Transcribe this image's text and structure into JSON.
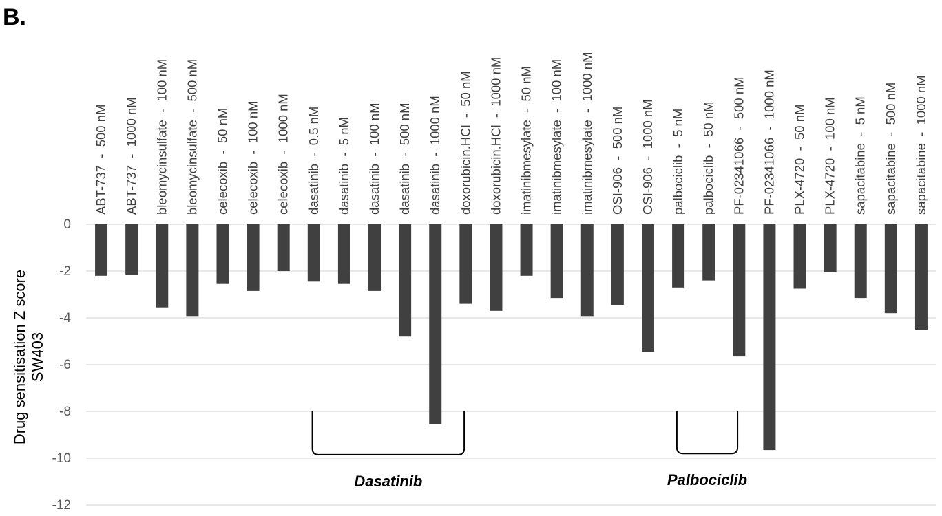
{
  "panel_label": "B.",
  "chart_data": {
    "type": "bar",
    "categories": [
      "ABT-737  -  500 nM",
      "ABT-737  -  1000 nM",
      "bleomycinsulfate  -  100 nM",
      "bleomycinsulfate  -  500 nM",
      "celecoxib  -  50 nM",
      "celecoxib  -  100 nM",
      "celecoxib  -  1000 nM",
      "dasatinib  -  0.5 nM",
      "dasatinib  -  5 nM",
      "dasatinib  -  100 nM",
      "dasatinib  -  500 nM",
      "dasatinib  -  1000 nM",
      "doxorubicin.HCl  -  50 nM",
      "doxorubicin.HCl  -  1000 nM",
      "imatinibmesylate  -  50 nM",
      "imatinibmesylate  -  100 nM",
      "imatinibmesylate  -  1000 nM",
      "OSI-906  -  500 nM",
      "OSI-906  -  1000 nM",
      "palbociclib  -  5 nM",
      "palbociclib  -  50 nM",
      "PF-02341066  -  500 nM",
      "PF-02341066  -  1000 nM",
      "PLX-4720  -  50 nM",
      "PLX-4720  -  100 nM",
      "sapacitabine  -  5 nM",
      "sapacitabine  -  500 nM",
      "sapacitabine  -  1000 nM"
    ],
    "values": [
      -2.2,
      -2.15,
      -3.55,
      -3.95,
      -2.55,
      -2.85,
      -2.0,
      -2.45,
      -2.55,
      -2.85,
      -4.8,
      -8.55,
      -3.4,
      -3.7,
      -2.2,
      -3.15,
      -3.95,
      -3.45,
      -5.45,
      -2.7,
      -2.4,
      -5.65,
      -9.65,
      -2.75,
      -2.05,
      -3.15,
      -3.8,
      -4.5
    ],
    "ylabel": [
      "Drug sensitisation Z score",
      "SW403"
    ],
    "ylim": [
      -12,
      0
    ],
    "yticks": [
      "0",
      "-2",
      "-4",
      "-6",
      "-8",
      "-10",
      "-12"
    ],
    "grid": true,
    "bar_color": "#404040",
    "annotations": [
      {
        "label": "Dasatinib",
        "from_category": 7,
        "to_category": 12,
        "y_top": -8.0,
        "y_bottom": -9.85
      },
      {
        "label": "Palbociclib",
        "from_category": 19,
        "to_category": 21,
        "y_top": -8.0,
        "y_bottom": -9.8
      }
    ]
  }
}
